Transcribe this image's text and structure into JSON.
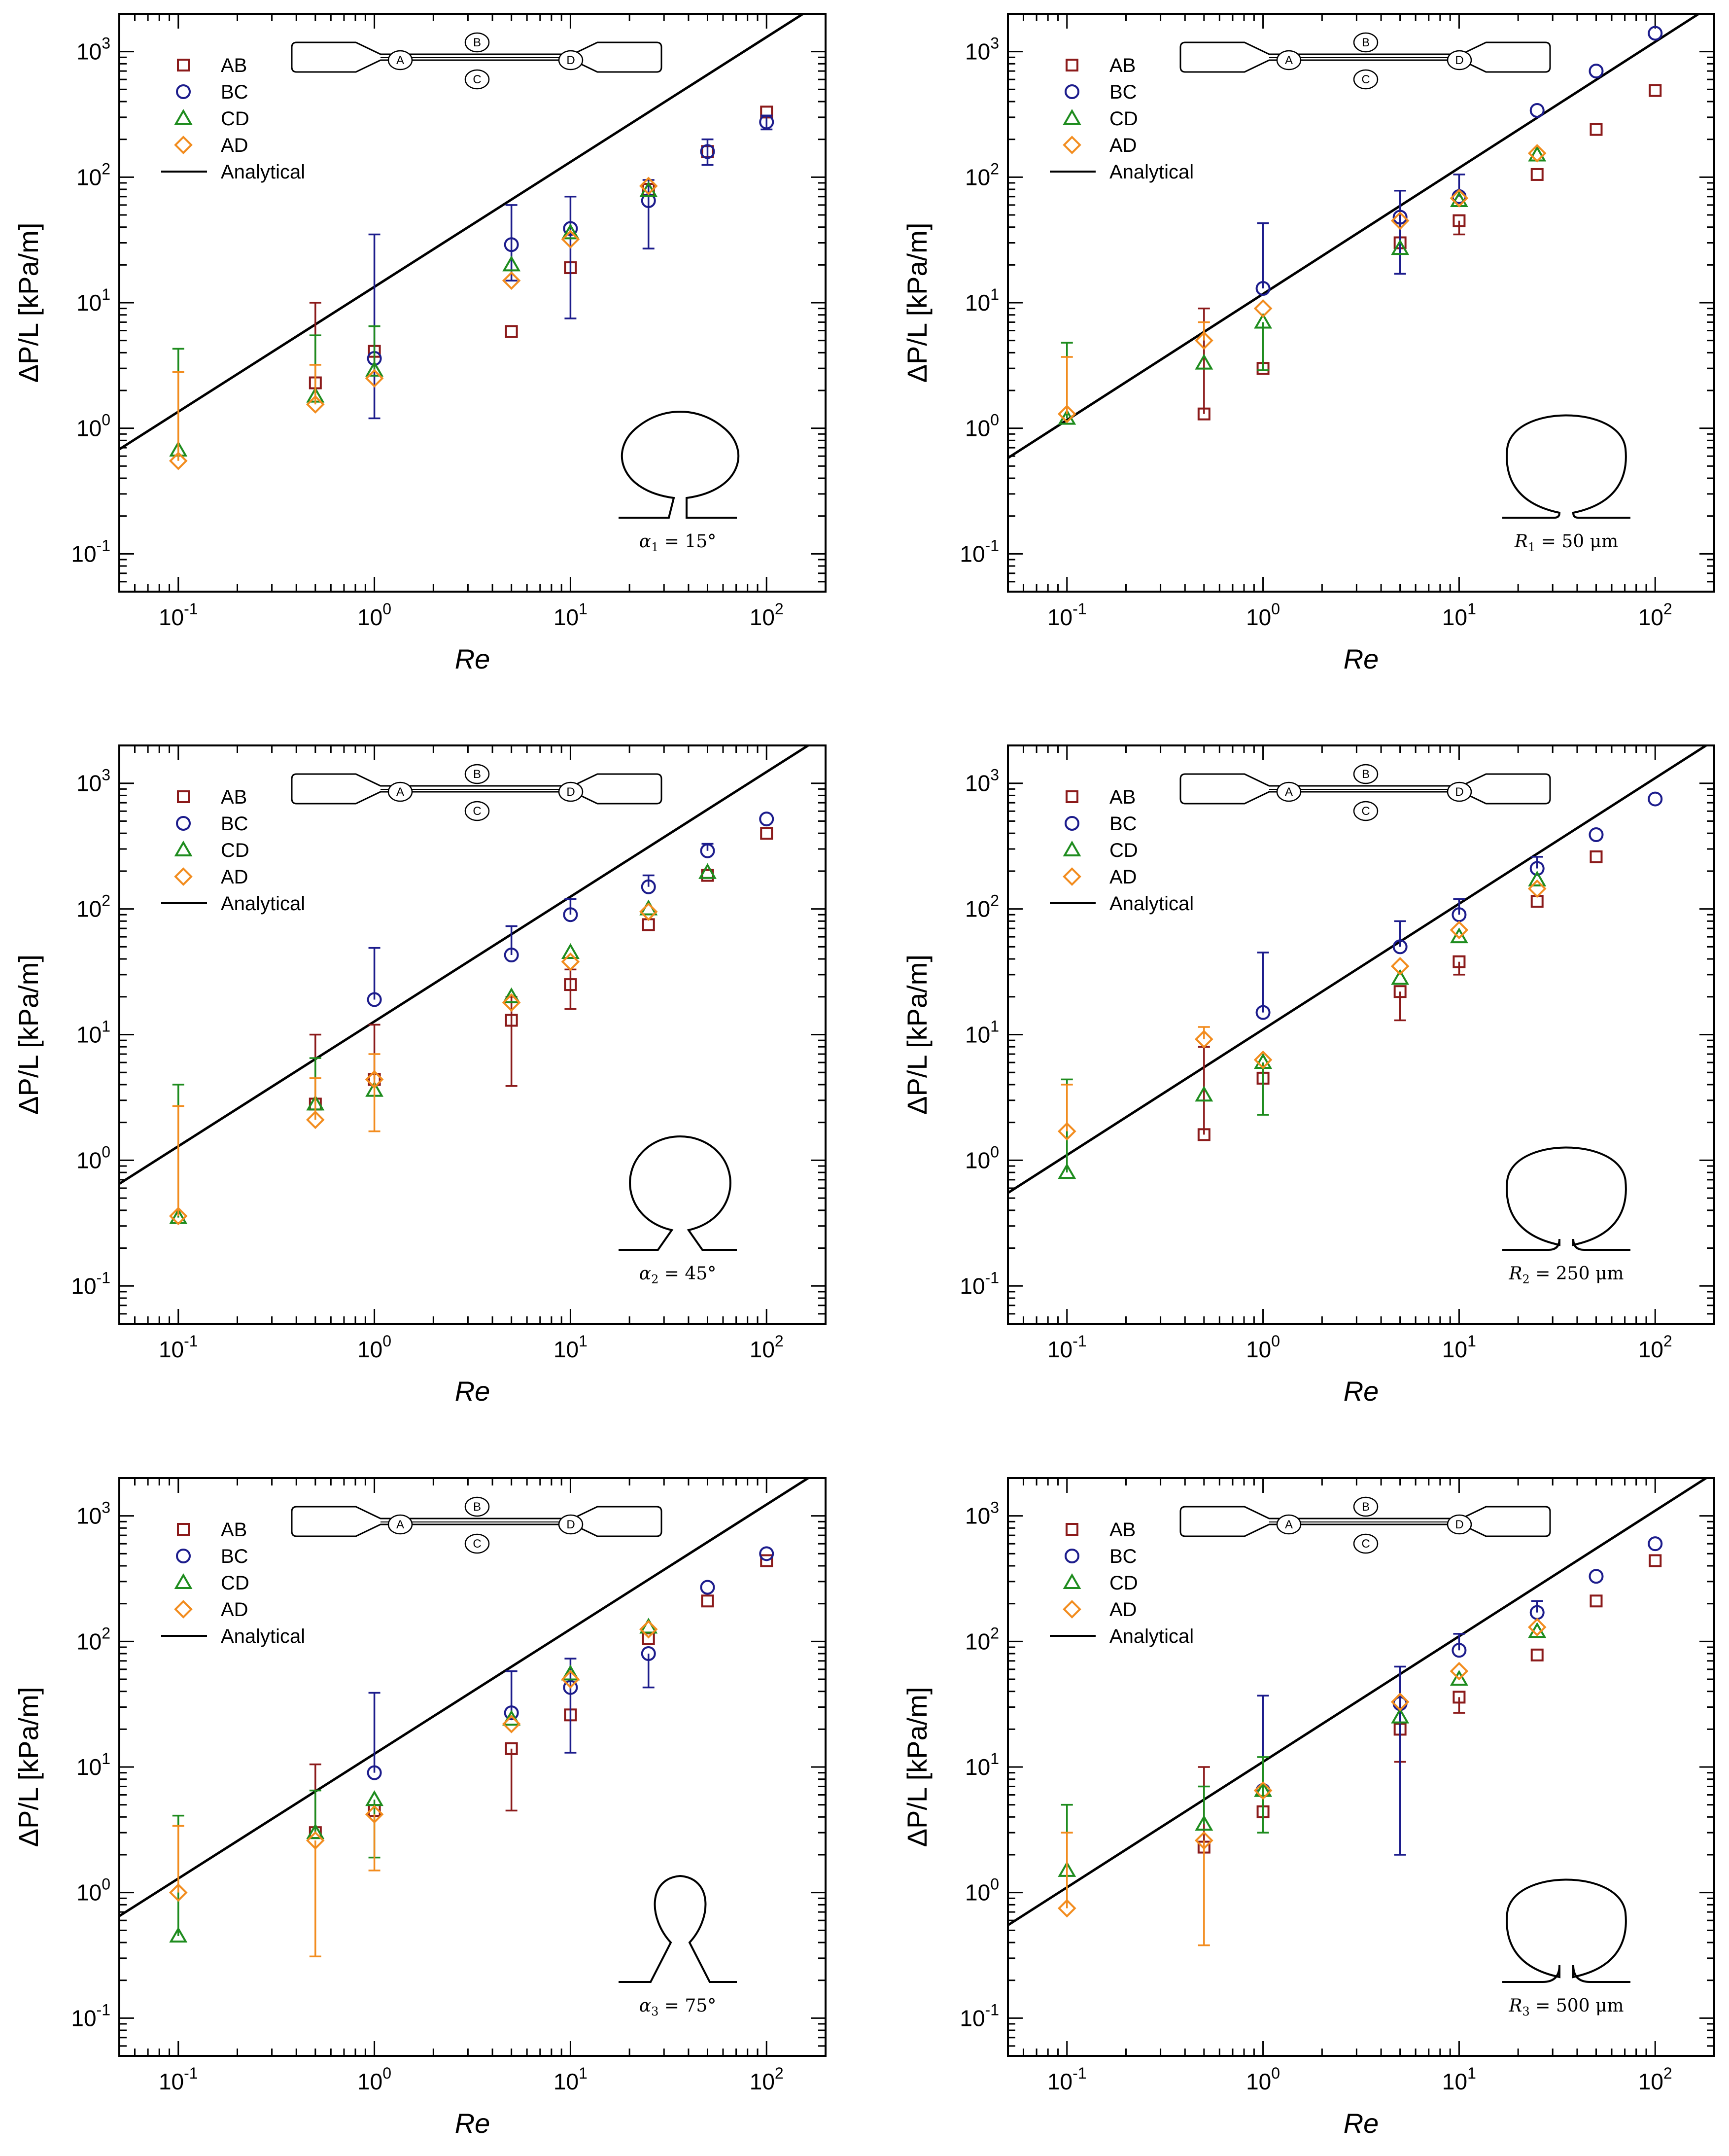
{
  "figure": {
    "legend": {
      "AB": "AB",
      "BC": "BC",
      "CD": "CD",
      "AD": "AD",
      "analytical": "Analytical"
    },
    "channel_letters": [
      "A",
      "B",
      "C",
      "D"
    ],
    "colors": {
      "AB": "#8b1a1a",
      "BC": "#1c1c8c",
      "CD": "#1e8c1e",
      "AD": "#f28c1e",
      "analytical": "#000000"
    },
    "x_ticks": [
      {
        "base": "10",
        "exp": "-1"
      },
      {
        "base": "10",
        "exp": "0"
      },
      {
        "base": "10",
        "exp": "1"
      },
      {
        "base": "10",
        "exp": "2"
      }
    ],
    "y_ticks": [
      {
        "base": "10",
        "exp": "-1"
      },
      {
        "base": "10",
        "exp": "0"
      },
      {
        "base": "10",
        "exp": "1"
      },
      {
        "base": "10",
        "exp": "2"
      },
      {
        "base": "10",
        "exp": "3"
      }
    ]
  },
  "chart_data": [
    {
      "type": "scatter",
      "panel": "alpha1",
      "title": "",
      "xlabel": "Re",
      "ylabel": "ΔP/L [kPa/m]",
      "xscale": "log",
      "yscale": "log",
      "xlim": [
        0.05,
        200
      ],
      "ylim": [
        0.05,
        2000
      ],
      "inset_label": {
        "sym": "α",
        "sub": "1",
        "rest": " = 15°"
      },
      "analytical": {
        "x": [
          0.05,
          200
        ],
        "y": [
          0.68,
          2600
        ]
      },
      "series": [
        {
          "name": "AB",
          "x": [
            0.5,
            1,
            5,
            10,
            25,
            50,
            100
          ],
          "y": [
            2.3,
            4.1,
            5.9,
            19,
            80,
            160,
            330
          ],
          "err_lo": [
            null,
            null,
            null,
            null,
            null,
            null,
            null
          ],
          "err_hi": [
            10,
            null,
            null,
            null,
            null,
            null,
            null
          ]
        },
        {
          "name": "BC",
          "x": [
            1,
            5,
            10,
            25,
            50,
            100
          ],
          "y": [
            3.6,
            29,
            39,
            65,
            160,
            275
          ],
          "err_lo": [
            1.2,
            15,
            7.5,
            27,
            125,
            240
          ],
          "err_hi": [
            35,
            60,
            70,
            95,
            200,
            310
          ]
        },
        {
          "name": "CD",
          "x": [
            0.1,
            0.5,
            1,
            5,
            10,
            25
          ],
          "y": [
            0.67,
            1.8,
            2.9,
            20,
            36,
            78
          ],
          "err_lo": [
            null,
            null,
            null,
            null,
            null,
            null
          ],
          "err_hi": [
            4.3,
            5.5,
            6.5,
            null,
            null,
            null
          ]
        },
        {
          "name": "AD",
          "x": [
            0.1,
            0.5,
            1,
            5,
            10,
            25
          ],
          "y": [
            0.55,
            1.55,
            2.5,
            15,
            32,
            85
          ],
          "err_lo": [
            null,
            null,
            null,
            null,
            null,
            null
          ],
          "err_hi": [
            2.8,
            3.2,
            null,
            null,
            null,
            null
          ]
        }
      ]
    },
    {
      "type": "scatter",
      "panel": "R1",
      "title": "",
      "xlabel": "Re",
      "ylabel": "ΔP/L [kPa/m]",
      "xscale": "log",
      "yscale": "log",
      "xlim": [
        0.05,
        200
      ],
      "ylim": [
        0.05,
        2000
      ],
      "inset_label": {
        "sym": "R",
        "sub": "1",
        "rest": " = 50 μm"
      },
      "analytical": {
        "x": [
          0.05,
          200
        ],
        "y": [
          0.58,
          2400
        ]
      },
      "series": [
        {
          "name": "AB",
          "x": [
            0.5,
            1,
            5,
            10,
            25,
            50,
            100
          ],
          "y": [
            1.3,
            3,
            30,
            45,
            105,
            240,
            490
          ],
          "err_lo": [
            null,
            null,
            null,
            35,
            null,
            null,
            null
          ],
          "err_hi": [
            9,
            null,
            null,
            null,
            null,
            null,
            null
          ]
        },
        {
          "name": "BC",
          "x": [
            1,
            5,
            10,
            25,
            50,
            100
          ],
          "y": [
            13,
            48,
            70,
            340,
            700,
            1400
          ],
          "err_lo": [
            null,
            17,
            null,
            null,
            null,
            null
          ],
          "err_hi": [
            43,
            78,
            105,
            null,
            null,
            null
          ]
        },
        {
          "name": "CD",
          "x": [
            0.1,
            0.5,
            1,
            5,
            10,
            25
          ],
          "y": [
            1.2,
            3.3,
            7,
            27,
            65,
            150
          ],
          "err_lo": [
            null,
            null,
            2.9,
            null,
            null,
            null
          ],
          "err_hi": [
            4.8,
            null,
            null,
            null,
            null,
            null
          ]
        },
        {
          "name": "AD",
          "x": [
            0.1,
            0.5,
            1,
            5,
            10,
            25
          ],
          "y": [
            1.3,
            5,
            9,
            45,
            68,
            155
          ],
          "err_lo": [
            null,
            null,
            null,
            null,
            null,
            null
          ],
          "err_hi": [
            3.7,
            7,
            null,
            null,
            null,
            null
          ]
        }
      ]
    },
    {
      "type": "scatter",
      "panel": "alpha2",
      "title": "",
      "xlabel": "Re",
      "ylabel": "ΔP/L [kPa/m]",
      "xscale": "log",
      "yscale": "log",
      "xlim": [
        0.05,
        200
      ],
      "ylim": [
        0.05,
        2000
      ],
      "inset_label": {
        "sym": "α",
        "sub": "2",
        "rest": " = 45°"
      },
      "analytical": {
        "x": [
          0.05,
          200
        ],
        "y": [
          0.65,
          2450
        ]
      },
      "series": [
        {
          "name": "AB",
          "x": [
            0.5,
            1,
            5,
            10,
            25,
            50,
            100
          ],
          "y": [
            2.8,
            4.4,
            13,
            25,
            75,
            185,
            400
          ],
          "err_lo": [
            null,
            null,
            3.9,
            16,
            null,
            null,
            null
          ],
          "err_hi": [
            10,
            12,
            20,
            33,
            null,
            null,
            null
          ]
        },
        {
          "name": "BC",
          "x": [
            1,
            5,
            10,
            25,
            50,
            100
          ],
          "y": [
            19,
            43,
            90,
            150,
            290,
            520
          ],
          "err_lo": [
            null,
            null,
            null,
            null,
            null,
            null
          ],
          "err_hi": [
            49,
            73,
            120,
            185,
            330,
            null
          ]
        },
        {
          "name": "CD",
          "x": [
            0.1,
            0.5,
            1,
            5,
            10,
            25,
            50
          ],
          "y": [
            0.35,
            2.8,
            3.6,
            20,
            45,
            100,
            195
          ],
          "err_lo": [
            null,
            null,
            null,
            null,
            null,
            null,
            null
          ],
          "err_hi": [
            4,
            6.5,
            null,
            null,
            null,
            null,
            null
          ]
        },
        {
          "name": "AD",
          "x": [
            0.1,
            0.5,
            1,
            5,
            10,
            25
          ],
          "y": [
            0.36,
            2.1,
            4.4,
            18,
            38,
            95
          ],
          "err_lo": [
            null,
            null,
            1.7,
            null,
            null,
            null
          ],
          "err_hi": [
            2.7,
            4.5,
            7,
            null,
            null,
            null
          ]
        }
      ]
    },
    {
      "type": "scatter",
      "panel": "R2",
      "title": "",
      "xlabel": "Re",
      "ylabel": "ΔP/L [kPa/m]",
      "xscale": "log",
      "yscale": "log",
      "xlim": [
        0.05,
        200
      ],
      "ylim": [
        0.05,
        2000
      ],
      "inset_label": {
        "sym": "R",
        "sub": "2",
        "rest": " = 250 μm"
      },
      "analytical": {
        "x": [
          0.05,
          200
        ],
        "y": [
          0.55,
          2200
        ]
      },
      "series": [
        {
          "name": "AB",
          "x": [
            0.5,
            1,
            5,
            10,
            25,
            50
          ],
          "y": [
            1.6,
            4.5,
            22,
            38,
            115,
            260
          ],
          "err_lo": [
            null,
            null,
            13,
            30,
            null,
            null
          ],
          "err_hi": [
            8,
            null,
            null,
            null,
            null,
            null
          ]
        },
        {
          "name": "BC",
          "x": [
            1,
            5,
            10,
            25,
            50,
            100
          ],
          "y": [
            15,
            50,
            90,
            210,
            390,
            750
          ],
          "err_lo": [
            null,
            null,
            null,
            null,
            null,
            null
          ],
          "err_hi": [
            45,
            80,
            120,
            260,
            null,
            null
          ]
        },
        {
          "name": "CD",
          "x": [
            0.1,
            0.5,
            1,
            5,
            10,
            25
          ],
          "y": [
            0.8,
            3.3,
            6,
            28,
            60,
            170
          ],
          "err_lo": [
            null,
            null,
            2.3,
            null,
            null,
            null
          ],
          "err_hi": [
            4.4,
            null,
            null,
            null,
            null,
            null
          ]
        },
        {
          "name": "AD",
          "x": [
            0.1,
            0.5,
            1,
            5,
            10,
            25
          ],
          "y": [
            1.7,
            9.2,
            6.3,
            35,
            68,
            145
          ],
          "err_lo": [
            null,
            null,
            null,
            null,
            null,
            null
          ],
          "err_hi": [
            4,
            11.5,
            null,
            null,
            null,
            null
          ]
        }
      ]
    },
    {
      "type": "scatter",
      "panel": "alpha3",
      "title": "",
      "xlabel": "Re",
      "ylabel": "ΔP/L [kPa/m]",
      "xscale": "log",
      "yscale": "log",
      "xlim": [
        0.05,
        200
      ],
      "ylim": [
        0.05,
        2000
      ],
      "inset_label": {
        "sym": "α",
        "sub": "3",
        "rest": " = 75°"
      },
      "analytical": {
        "x": [
          0.05,
          200
        ],
        "y": [
          0.65,
          2450
        ]
      },
      "series": [
        {
          "name": "AB",
          "x": [
            0.5,
            1,
            5,
            10,
            25,
            50,
            100
          ],
          "y": [
            3,
            4.5,
            14,
            26,
            105,
            210,
            440
          ],
          "err_lo": [
            null,
            null,
            4.5,
            null,
            null,
            null,
            null
          ],
          "err_hi": [
            10.5,
            null,
            null,
            null,
            null,
            null,
            null
          ]
        },
        {
          "name": "BC",
          "x": [
            1,
            5,
            10,
            25,
            50,
            100
          ],
          "y": [
            9,
            27,
            43,
            80,
            270,
            500
          ],
          "err_lo": [
            null,
            null,
            13,
            43,
            null,
            null
          ],
          "err_hi": [
            39,
            58,
            73,
            null,
            null,
            null
          ]
        },
        {
          "name": "CD",
          "x": [
            0.1,
            0.5,
            1,
            5,
            10,
            25
          ],
          "y": [
            0.45,
            3,
            5.5,
            24,
            55,
            130
          ],
          "err_lo": [
            null,
            null,
            1.9,
            null,
            null,
            null
          ],
          "err_hi": [
            4.1,
            6.5,
            null,
            null,
            null,
            null
          ]
        },
        {
          "name": "AD",
          "x": [
            0.1,
            0.5,
            1,
            5,
            10,
            25
          ],
          "y": [
            1,
            2.6,
            4.2,
            22,
            50,
            125
          ],
          "err_lo": [
            null,
            0.31,
            1.5,
            null,
            null,
            null
          ],
          "err_hi": [
            3.4,
            null,
            null,
            null,
            null,
            null
          ]
        }
      ]
    },
    {
      "type": "scatter",
      "panel": "R3",
      "title": "",
      "xlabel": "Re",
      "ylabel": "ΔP/L [kPa/m]",
      "xscale": "log",
      "yscale": "log",
      "xlim": [
        0.05,
        200
      ],
      "ylim": [
        0.05,
        2000
      ],
      "inset_label": {
        "sym": "R",
        "sub": "3",
        "rest": " = 500 μm"
      },
      "analytical": {
        "x": [
          0.05,
          200
        ],
        "y": [
          0.55,
          2200
        ]
      },
      "series": [
        {
          "name": "AB",
          "x": [
            0.5,
            1,
            5,
            10,
            25,
            50,
            100
          ],
          "y": [
            2.3,
            4.4,
            20,
            36,
            78,
            210,
            440
          ],
          "err_lo": [
            null,
            null,
            11,
            27,
            null,
            null,
            null
          ],
          "err_hi": [
            10,
            null,
            null,
            null,
            null,
            null,
            null
          ]
        },
        {
          "name": "BC",
          "x": [
            1,
            5,
            10,
            25,
            50,
            100
          ],
          "y": [
            6.5,
            32,
            85,
            170,
            330,
            600
          ],
          "err_lo": [
            null,
            2,
            null,
            null,
            null,
            null
          ],
          "err_hi": [
            37,
            63,
            115,
            210,
            null,
            null
          ]
        },
        {
          "name": "CD",
          "x": [
            0.1,
            0.5,
            1,
            5,
            10,
            25
          ],
          "y": [
            1.5,
            3.5,
            6.5,
            25,
            50,
            120
          ],
          "err_lo": [
            null,
            null,
            3,
            null,
            null,
            null
          ],
          "err_hi": [
            5,
            7,
            12,
            null,
            null,
            null
          ]
        },
        {
          "name": "AD",
          "x": [
            0.1,
            0.5,
            1,
            5,
            10,
            25
          ],
          "y": [
            0.75,
            2.6,
            6.5,
            33,
            58,
            130
          ],
          "err_lo": [
            null,
            0.38,
            null,
            null,
            null,
            null
          ],
          "err_hi": [
            3,
            null,
            null,
            null,
            null,
            null
          ]
        }
      ]
    }
  ]
}
